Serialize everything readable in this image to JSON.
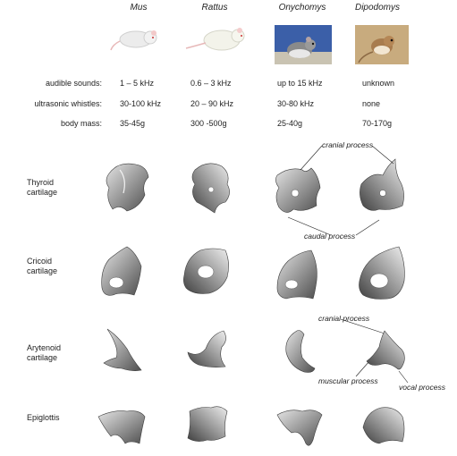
{
  "genera": [
    "Mus",
    "Rattus",
    "Onychomys",
    "Dipodomys"
  ],
  "rows": [
    {
      "label": "audible sounds:",
      "values": [
        "1 – 5 kHz",
        "0.6 – 3 kHz",
        "up to 15 kHz",
        "unknown"
      ]
    },
    {
      "label": "ultrasonic whistles:",
      "values": [
        "30-100 kHz",
        "20 – 90 kHz",
        "30-80 kHz",
        "none"
      ]
    },
    {
      "label": "body mass:",
      "values": [
        "35-45g",
        "300 -500g",
        "25-40g",
        "70-170g"
      ]
    }
  ],
  "structures": [
    {
      "line1": "Thyroid",
      "line2": "cartilage"
    },
    {
      "line1": "Cricoid",
      "line2": "cartilage"
    },
    {
      "line1": "Arytenoid",
      "line2": "cartilage"
    },
    {
      "line1": "Epiglottis",
      "line2": ""
    }
  ],
  "annotations": {
    "thyroid_cranial": "cranial process",
    "thyroid_caudal": "caudal process",
    "aryt_cranial": "cranial process",
    "aryt_muscular": "muscular process",
    "aryt_vocal": "vocal process"
  },
  "colors": {
    "text": "#222222",
    "cartilage_light": "#d9d9d9",
    "cartilage_dark": "#5a5a5a"
  }
}
